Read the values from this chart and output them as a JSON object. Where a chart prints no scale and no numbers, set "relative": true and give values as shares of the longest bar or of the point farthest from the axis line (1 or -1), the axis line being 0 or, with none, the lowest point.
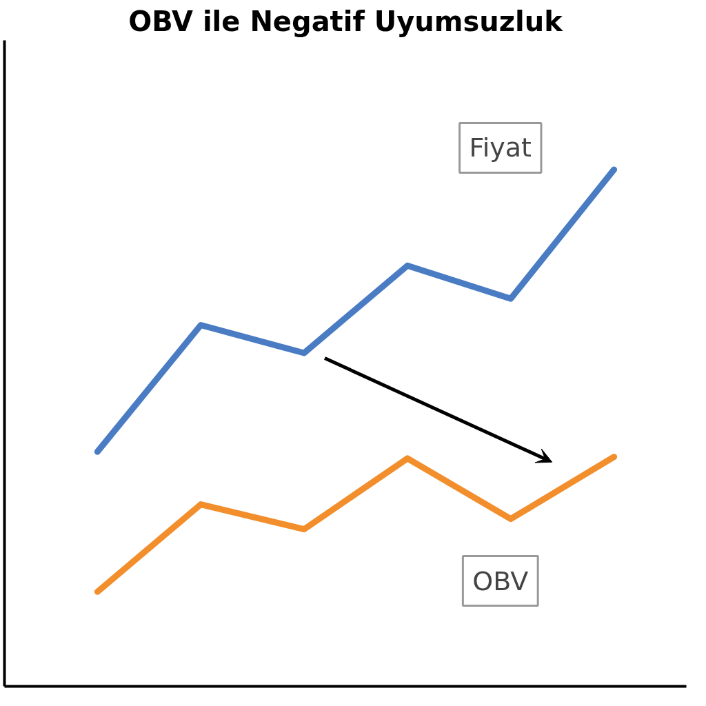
{
  "chart_data": {
    "type": "line",
    "title": "OBV ile Negatif Uyumsuzluk",
    "relative": true,
    "categories": [
      null,
      null,
      null,
      null,
      null,
      null
    ],
    "series": [
      {
        "name": "Fiyat",
        "color": "#4a7cc4",
        "values": [
          0.454,
          0.699,
          0.645,
          0.814,
          0.75,
          1
        ]
      },
      {
        "name": "OBV",
        "color": "#f28e2b",
        "values": [
          0.183,
          0.352,
          0.304,
          0.441,
          0.324,
          0.444
        ]
      }
    ]
  }
}
